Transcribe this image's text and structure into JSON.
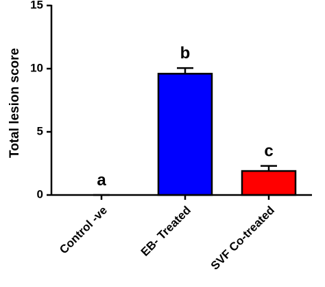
{
  "chart_data": {
    "type": "bar",
    "y_label": "Total lesion score",
    "categories": [
      "Control -ve",
      "EB- Treated",
      "SVF Co-treated"
    ],
    "values": [
      0,
      9.6,
      1.9
    ],
    "errors": [
      0,
      0.45,
      0.4
    ],
    "colors": [
      "#0000ff",
      "#0000ff",
      "#ff0000"
    ],
    "annotations": [
      "a",
      "b",
      "c"
    ],
    "ylim": [
      0,
      15
    ],
    "yticks": [
      0,
      5,
      10,
      15
    ]
  }
}
